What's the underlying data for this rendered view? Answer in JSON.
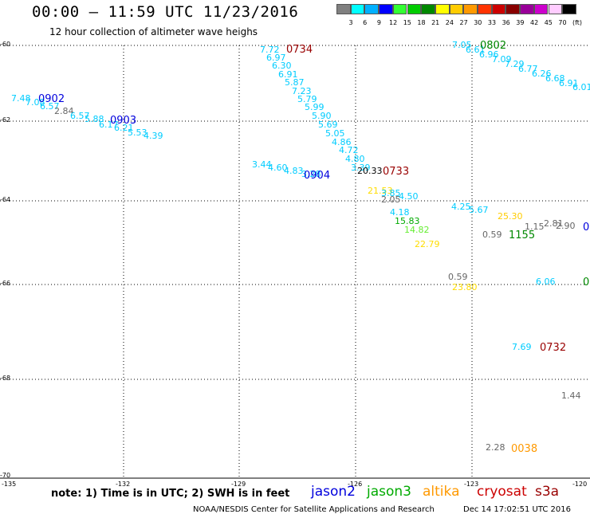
{
  "header": {
    "title": "00:00 – 11:59 UTC 11/23/2016",
    "subtitle": "12 hour collection of altimeter wave heighs"
  },
  "colorbar": {
    "unit": "(ft)",
    "bins": [
      {
        "color": "#808080",
        "label": "3"
      },
      {
        "color": "#00ffff",
        "label": "6"
      },
      {
        "color": "#00b0ff",
        "label": "9"
      },
      {
        "color": "#0000ff",
        "label": "12"
      },
      {
        "color": "#33ff33",
        "label": "15"
      },
      {
        "color": "#00cc00",
        "label": "18"
      },
      {
        "color": "#008800",
        "label": "21"
      },
      {
        "color": "#ffff00",
        "label": "24"
      },
      {
        "color": "#ffcc00",
        "label": "27"
      },
      {
        "color": "#ff9900",
        "label": "30"
      },
      {
        "color": "#ff3300",
        "label": "33"
      },
      {
        "color": "#cc0000",
        "label": "36"
      },
      {
        "color": "#880000",
        "label": "39"
      },
      {
        "color": "#990099",
        "label": "42"
      },
      {
        "color": "#cc00cc",
        "label": "45"
      },
      {
        "color": "#ffccff",
        "label": "70"
      },
      {
        "color": "#000000",
        "label": ""
      }
    ]
  },
  "map": {
    "lat_ticks": [
      "-60",
      "-62",
      "-64",
      "-66",
      "-68",
      "-70"
    ],
    "lon_ticks": [
      "-135",
      "-132",
      "-129",
      "-126",
      "-123",
      "-120"
    ],
    "observations": [
      {
        "text": "7.72",
        "color": "#00ccff"
      },
      {
        "text": "6.97",
        "color": "#00ccff"
      },
      {
        "text": "6.30",
        "color": "#00ccff"
      },
      {
        "text": "6.91",
        "color": "#00ccff"
      },
      {
        "text": "5.87",
        "color": "#00ccff"
      },
      {
        "text": "7.23",
        "color": "#00ccff"
      },
      {
        "text": "5.79",
        "color": "#00ccff"
      },
      {
        "text": "5.99",
        "color": "#00ccff"
      },
      {
        "text": "5.90",
        "color": "#00ccff"
      },
      {
        "text": "5.69",
        "color": "#00ccff"
      },
      {
        "text": "5.05",
        "color": "#00ccff"
      },
      {
        "text": "4.86",
        "color": "#00ccff"
      },
      {
        "text": "4.72",
        "color": "#00ccff"
      },
      {
        "text": "4.80",
        "color": "#00ccff"
      },
      {
        "text": "3.39",
        "color": "#00ccff"
      },
      {
        "text": "20.33",
        "color": "#000000"
      },
      {
        "text": "7.48",
        "color": "#00ccff"
      },
      {
        "text": "7.08",
        "color": "#00ccff"
      },
      {
        "text": "6.57",
        "color": "#00ccff"
      },
      {
        "text": "2.84",
        "color": "#666666"
      },
      {
        "text": "6.57",
        "color": "#00ccff"
      },
      {
        "text": "5.88",
        "color": "#00ccff"
      },
      {
        "text": "6.17",
        "color": "#00ccff"
      },
      {
        "text": "6.21",
        "color": "#00ccff"
      },
      {
        "text": "5.53",
        "color": "#00ccff"
      },
      {
        "text": "4.39",
        "color": "#00ccff"
      },
      {
        "text": "3.44",
        "color": "#00ccff"
      },
      {
        "text": "4.60",
        "color": "#00ccff"
      },
      {
        "text": "4.83",
        "color": "#00ccff"
      },
      {
        "text": "3.28",
        "color": "#00ccff"
      },
      {
        "text": "21.53",
        "color": "#ffdd00"
      },
      {
        "text": "3.85",
        "color": "#00ccff"
      },
      {
        "text": "4.50",
        "color": "#00ccff"
      },
      {
        "text": "2.05",
        "color": "#666666"
      },
      {
        "text": "4.18",
        "color": "#00ccff"
      },
      {
        "text": "15.83",
        "color": "#00aa00"
      },
      {
        "text": "14.82",
        "color": "#66ee33"
      },
      {
        "text": "22.79",
        "color": "#ffdd00"
      },
      {
        "text": "7.05",
        "color": "#00ccff"
      },
      {
        "text": "6.61",
        "color": "#00ccff"
      },
      {
        "text": "6.96",
        "color": "#00ccff"
      },
      {
        "text": "7.09",
        "color": "#00ccff"
      },
      {
        "text": "7.29",
        "color": "#00ccff"
      },
      {
        "text": "6.77",
        "color": "#00ccff"
      },
      {
        "text": "6.26",
        "color": "#00ccff"
      },
      {
        "text": "6.68",
        "color": "#00ccff"
      },
      {
        "text": "6.91",
        "color": "#00ccff"
      },
      {
        "text": "6.01",
        "color": "#00ccff"
      },
      {
        "text": "4.25",
        "color": "#00ccff"
      },
      {
        "text": "5.67",
        "color": "#00ccff"
      },
      {
        "text": "25.30",
        "color": "#ffcc00"
      },
      {
        "text": "2.81",
        "color": "#666666"
      },
      {
        "text": "1.15",
        "color": "#666666"
      },
      {
        "text": "2.90",
        "color": "#666666"
      },
      {
        "text": "0.59",
        "color": "#666666"
      },
      {
        "text": "0.59",
        "color": "#666666"
      },
      {
        "text": "23.80",
        "color": "#ffdd00"
      },
      {
        "text": "6.06",
        "color": "#00ccff"
      },
      {
        "text": "7.69",
        "color": "#00ccff"
      },
      {
        "text": "1.44",
        "color": "#666666"
      },
      {
        "text": "2.28",
        "color": "#666666"
      }
    ],
    "pass_labels": [
      {
        "text": "0734",
        "color": "#990000"
      },
      {
        "text": "0902",
        "color": "#0000dd"
      },
      {
        "text": "0903",
        "color": "#0000dd"
      },
      {
        "text": "0904",
        "color": "#0000dd"
      },
      {
        "text": "0733",
        "color": "#990000"
      },
      {
        "text": "0802",
        "color": "#008800"
      },
      {
        "text": "1155",
        "color": "#008800"
      },
      {
        "text": "0",
        "color": "#0000dd"
      },
      {
        "text": "0",
        "color": "#008800"
      },
      {
        "text": "0732",
        "color": "#990000"
      },
      {
        "text": "0038",
        "color": "#ff9900"
      }
    ]
  },
  "footer": {
    "note": "note: 1) Time is in UTC; 2) SWH is in feet",
    "satellites": [
      {
        "name": "jason2",
        "color": "#0000dd"
      },
      {
        "name": "jason3",
        "color": "#00aa00"
      },
      {
        "name": "altika",
        "color": "#ff9900"
      },
      {
        "name": "cryosat",
        "color": "#cc0000"
      },
      {
        "name": "s3a",
        "color": "#990000"
      }
    ],
    "credit": "NOAA/NESDIS Center for Satellite Applications and Research",
    "stamp": "Dec 14 17:02:51 UTC 2016"
  }
}
